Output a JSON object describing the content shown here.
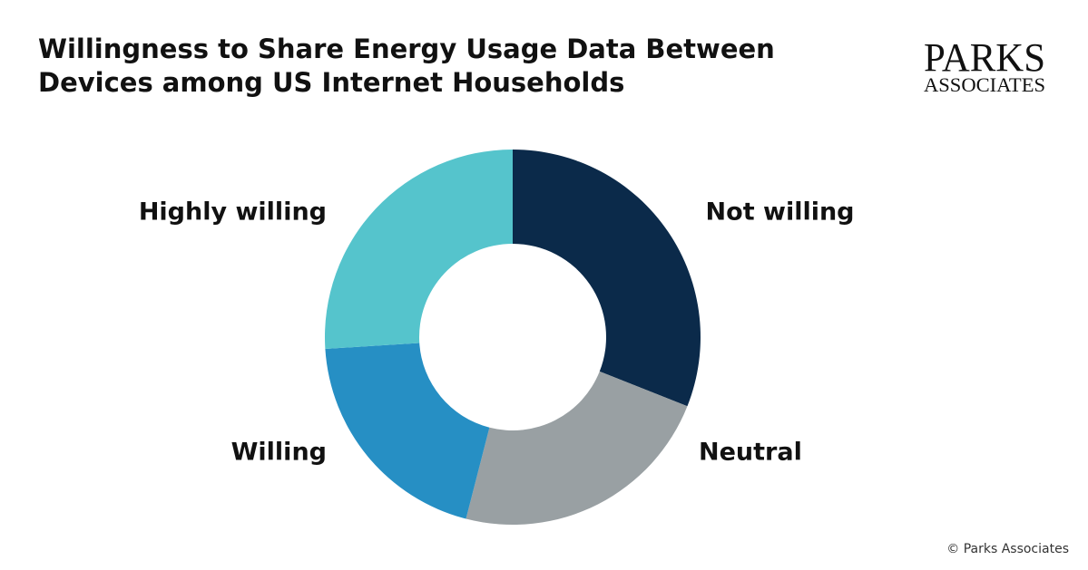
{
  "chart_data": {
    "type": "donut",
    "title_lines": [
      "Willingness to Share Energy Usage Data Between",
      "Devices among US Internet Households"
    ],
    "categories": [
      "Not willing",
      "Neutral",
      "Willing",
      "Highly willing"
    ],
    "values": [
      31,
      23,
      20,
      26
    ],
    "colors": [
      "#0b2a4a",
      "#99a0a3",
      "#268fc4",
      "#55c4cc"
    ],
    "logo": [
      "PARKS",
      "ASSOCIATES"
    ],
    "source": "© Parks Associates"
  }
}
